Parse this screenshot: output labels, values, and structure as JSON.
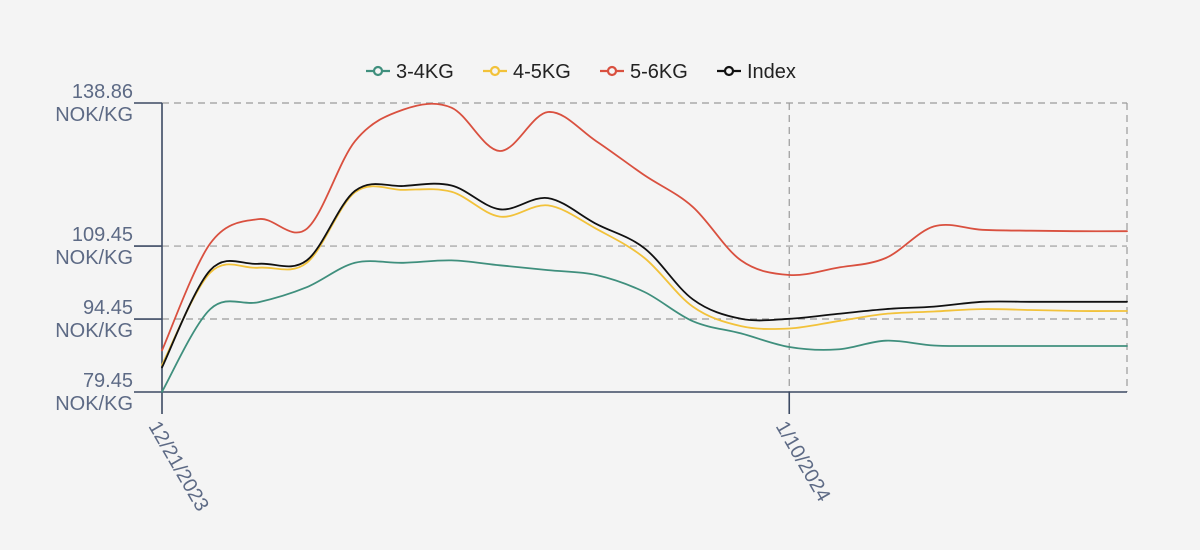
{
  "chart_data": {
    "type": "line",
    "x_tick_labels": [
      "12/21/2023",
      "1/10/2024"
    ],
    "x_tick_index": [
      0,
      13
    ],
    "y_ticks": [
      79.45,
      94.45,
      109.45,
      138.86
    ],
    "y_tick_labels": [
      [
        "79.45",
        "NOK/KG"
      ],
      [
        "94.45",
        "NOK/KG"
      ],
      [
        "109.45",
        "NOK/KG"
      ],
      [
        "138.86",
        "NOK/KG"
      ]
    ],
    "ylim": [
      79.45,
      138.86
    ],
    "grid": true,
    "legend_position": "top-center",
    "series": [
      {
        "name": "3-4KG",
        "color": "#3f8f7d",
        "values": [
          79.5,
          96.5,
          97.9,
          101.0,
          106.0,
          106.0,
          106.5,
          105.5,
          104.5,
          103.5,
          100.0,
          94.0,
          91.5,
          88.7,
          88.2,
          90.0,
          89.0,
          88.9,
          88.9,
          88.9,
          88.9
        ]
      },
      {
        "name": "4-5KG",
        "color": "#f2c23a",
        "values": [
          85.0,
          104.0,
          105.0,
          106.0,
          120.5,
          121.0,
          120.6,
          115.5,
          117.8,
          113.0,
          107.0,
          97.0,
          93.0,
          92.5,
          94.0,
          95.5,
          96.0,
          96.5,
          96.3,
          96.1,
          96.1
        ]
      },
      {
        "name": "5-6KG",
        "color": "#d9503f",
        "values": [
          88.0,
          110.0,
          115.0,
          113.0,
          131.0,
          137.5,
          137.9,
          129.0,
          137.0,
          131.0,
          124.0,
          117.5,
          106.5,
          103.5,
          105.0,
          107.0,
          113.5,
          112.8,
          112.6,
          112.5,
          112.5
        ]
      },
      {
        "name": "Index",
        "color": "#111111",
        "values": [
          84.5,
          104.5,
          105.8,
          106.5,
          120.8,
          121.8,
          121.9,
          117.0,
          119.3,
          114.0,
          109.0,
          98.5,
          94.5,
          94.5,
          95.5,
          96.5,
          97.0,
          98.0,
          98.0,
          98.0,
          98.0
        ]
      }
    ]
  }
}
